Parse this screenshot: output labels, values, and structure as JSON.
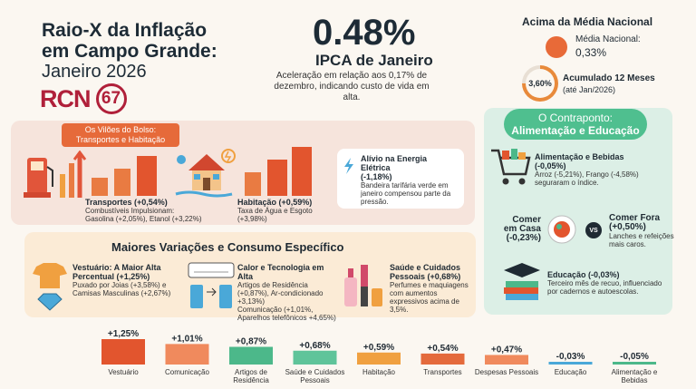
{
  "header": {
    "title_line1": "Raio-X da Inflação",
    "title_line2": "em Campo Grande:",
    "title_line3": "Janeiro 2026",
    "logo_text": "RCN",
    "logo_number": "67"
  },
  "headline": {
    "value": "0.48%",
    "label": "IPCA de Janeiro",
    "description": "Aceleração em relação aos 0,17% de dezembro, indicando custo de vida em alta."
  },
  "national": {
    "title": "Acima da Média Nacional",
    "media_label": "Média Nacional:",
    "media_value": "0,33%",
    "ring_value": "3,60%",
    "ring_fraction": 0.75,
    "acum_label": "Acumulado 12 Meses",
    "acum_sub": "(até Jan/2026)"
  },
  "villains": {
    "pill_line1": "Os Vilões do Bolso:",
    "pill_line2": "Transportes e Habitação",
    "transportes_title": "Transportes (+0,54%)",
    "transportes_desc1": "Combustíveis Impulsionam:",
    "transportes_desc2": "Gasolina (+2,05%), Etanol (+3,22%)",
    "habitacao_title": "Habitação (+0,59%)",
    "habitacao_desc": "Taxa de Água e Esgoto (+3,98%)",
    "alivio_title": "Alívio na Energia Elétrica",
    "alivio_value": "(-1,18%)",
    "alivio_desc": "Bandeira tarifária verde em janeiro compensou parte da pressão."
  },
  "contraponto": {
    "head_line1": "O Contraponto:",
    "head_line2": "Alimentação e Educação",
    "alim_title": "Alimentação e Bebidas",
    "alim_value": "(-0,05%)",
    "alim_desc": "Arroz (-5,21%), Frango (-4,58%) seguraram o índice.",
    "casa_title": "Comer em Casa",
    "casa_value": "(-0,23%)",
    "fora_title": "Comer Fora",
    "fora_value": "(+0,50%)",
    "fora_desc": "Lanches e refeições mais caros.",
    "vs": "VS",
    "edu_title": "Educação (-0,03%)",
    "edu_desc": "Terceiro mês de recuo, influenciado por cadernos e autoescolas."
  },
  "maiores": {
    "title": "Maiores Variações e Consumo Específico",
    "vest_title": "Vestuário: A Maior Alta Percentual (+1,25%)",
    "vest_desc": "Puxado por Joias (+3,58%) e Camisas Masculinas (+2,67%)",
    "tech_title": "Calor e Tecnologia em Alta",
    "tech_desc1": "Artigos de Residência (+0,87%), Ar-condicionado +3,13%)",
    "tech_desc2": "Comunicação (+1,01%, Aparelhos telefônicos +4,65%)",
    "saude_title": "Saúde e Cuidados Pessoais (+0,68%)",
    "saude_desc": "Perfumes e maquiagens com aumentos expressivos acima de 3,5%."
  },
  "chart_data": {
    "type": "bar",
    "categories": [
      "Vestuário",
      "Comunicação",
      "Artigos de Residência",
      "Saúde e Cuidados Pessoais",
      "Habitação",
      "Transportes",
      "Despesas Pessoais",
      "Educação",
      "Alimentação e Bebidas"
    ],
    "values": [
      1.25,
      1.01,
      0.87,
      0.68,
      0.59,
      0.54,
      0.47,
      -0.03,
      -0.05
    ],
    "labels": [
      "+1,25%",
      "+1,01%",
      "+0,87%",
      "+0,68%",
      "+0,59%",
      "+0,54%",
      "+0,47%",
      "-0,03%",
      "-0,05%"
    ],
    "colors": [
      "#e2552e",
      "#f08a5d",
      "#4cb88a",
      "#5fc49a",
      "#f0a040",
      "#e46a3c",
      "#f08a5d",
      "#4aa8d8",
      "#4cb88a"
    ]
  }
}
